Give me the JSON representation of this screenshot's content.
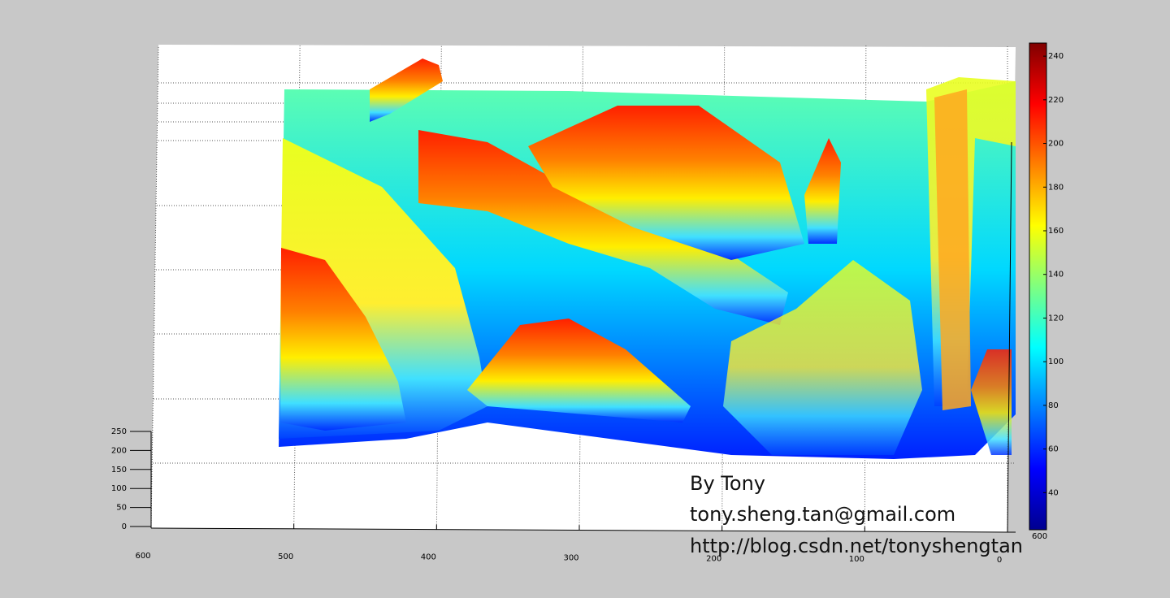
{
  "chart_data": {
    "type": "surface",
    "annotations": [
      "By Tony",
      "tony.sheng.tan@gmail.com",
      "http://blog.csdn.net/tonyshengtan"
    ],
    "xlim": [
      600,
      0
    ],
    "xticks": [
      600,
      500,
      400,
      300,
      200,
      100,
      0
    ],
    "zlim": [
      0,
      250
    ],
    "zticks": [
      0,
      50,
      100,
      150,
      200,
      250
    ],
    "yticks": [
      600
    ],
    "clim": [
      23,
      246
    ],
    "cticks": [
      40,
      60,
      80,
      100,
      120,
      140,
      160,
      180,
      200,
      220,
      240
    ],
    "colormap": "jet",
    "grid": true
  }
}
